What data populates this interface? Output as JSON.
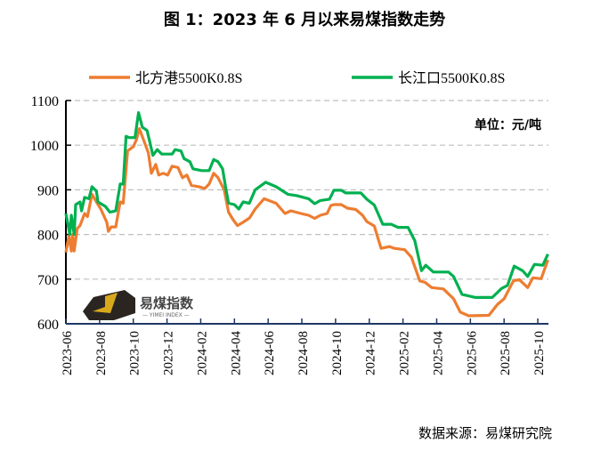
{
  "title": "图 1：2023 年 6 月以来易煤指数走势",
  "source": "数据来源：易煤研究院",
  "watermark": {
    "text": "易煤指数",
    "sub": "YIMEI INDEX"
  },
  "chart_data": {
    "type": "line",
    "title": "图 1：2023 年 6 月以来易煤指数走势",
    "unit_label": "单位：元/吨",
    "x_unit": "months since 2023-06",
    "xlim": [
      0,
      28.8
    ],
    "ylim": [
      600,
      1100
    ],
    "yticks": [
      600,
      700,
      800,
      900,
      1000,
      1100
    ],
    "xtick_labels": [
      "2023-06",
      "2023-08",
      "2023-10",
      "2023-12",
      "2024-02",
      "2024-04",
      "2024-06",
      "2024-08",
      "2024-10",
      "2024-12",
      "2025-02",
      "2025-04",
      "2025-06",
      "2025-08",
      "2025-10"
    ],
    "grid": "horizontal dashed",
    "legend_position": "top",
    "series": [
      {
        "name": "北方港5500K0.8S",
        "color": "#ED7D31",
        "points": [
          [
            0,
            760
          ],
          [
            0.18,
            797
          ],
          [
            0.32,
            763
          ],
          [
            0.4,
            800
          ],
          [
            0.49,
            763
          ],
          [
            0.67,
            813
          ],
          [
            0.84,
            820
          ],
          [
            1.11,
            847
          ],
          [
            1.28,
            840
          ],
          [
            1.55,
            890
          ],
          [
            1.81,
            873
          ],
          [
            2.07,
            857
          ],
          [
            2.43,
            827
          ],
          [
            2.52,
            807
          ],
          [
            2.69,
            817
          ],
          [
            2.96,
            817
          ],
          [
            3.22,
            873
          ],
          [
            3.4,
            870
          ],
          [
            3.66,
            987
          ],
          [
            4.01,
            997
          ],
          [
            4.19,
            1013
          ],
          [
            4.36,
            1037
          ],
          [
            4.63,
            1010
          ],
          [
            4.89,
            983
          ],
          [
            5.07,
            937
          ],
          [
            5.33,
            957
          ],
          [
            5.51,
            933
          ],
          [
            5.77,
            937
          ],
          [
            6.04,
            933
          ],
          [
            6.3,
            953
          ],
          [
            6.65,
            950
          ],
          [
            6.92,
            927
          ],
          [
            7.18,
            933
          ],
          [
            7.45,
            910
          ],
          [
            7.89,
            907
          ],
          [
            8.24,
            903
          ],
          [
            8.5,
            913
          ],
          [
            8.77,
            937
          ],
          [
            9.03,
            927
          ],
          [
            9.39,
            900
          ],
          [
            9.65,
            850
          ],
          [
            9.92,
            833
          ],
          [
            10.18,
            820
          ],
          [
            10.5,
            827
          ],
          [
            10.9,
            837
          ],
          [
            11.23,
            857
          ],
          [
            11.76,
            880
          ],
          [
            12.47,
            870
          ],
          [
            13.0,
            847
          ],
          [
            13.35,
            853
          ],
          [
            14.05,
            846
          ],
          [
            14.4,
            843
          ],
          [
            14.76,
            836
          ],
          [
            15.1,
            843
          ],
          [
            15.5,
            847
          ],
          [
            15.72,
            865
          ],
          [
            15.9,
            867
          ],
          [
            16.34,
            867
          ],
          [
            16.7,
            859
          ],
          [
            17.2,
            856
          ],
          [
            17.6,
            843
          ],
          [
            17.85,
            829
          ],
          [
            18.3,
            819
          ],
          [
            18.7,
            769
          ],
          [
            19.2,
            773
          ],
          [
            19.5,
            769
          ],
          [
            20.1,
            766
          ],
          [
            20.5,
            749
          ],
          [
            21.0,
            696
          ],
          [
            21.3,
            693
          ],
          [
            21.7,
            681
          ],
          [
            22.4,
            678
          ],
          [
            23.0,
            656
          ],
          [
            23.4,
            626
          ],
          [
            23.9,
            618
          ],
          [
            25.1,
            619
          ],
          [
            25.6,
            643
          ],
          [
            26.0,
            656
          ],
          [
            26.55,
            696
          ],
          [
            26.9,
            699
          ],
          [
            27.4,
            681
          ],
          [
            27.7,
            703
          ],
          [
            28.2,
            701
          ],
          [
            28.6,
            743
          ]
        ]
      },
      {
        "name": "长江口5500K0.8S",
        "color": "#00B050",
        "points": [
          [
            0,
            847
          ],
          [
            0.23,
            800
          ],
          [
            0.32,
            843
          ],
          [
            0.49,
            800
          ],
          [
            0.58,
            867
          ],
          [
            0.84,
            873
          ],
          [
            0.93,
            853
          ],
          [
            1.11,
            883
          ],
          [
            1.37,
            880
          ],
          [
            1.55,
            907
          ],
          [
            1.81,
            897
          ],
          [
            1.9,
            873
          ],
          [
            2.34,
            863
          ],
          [
            2.61,
            850
          ],
          [
            2.96,
            853
          ],
          [
            3.22,
            913
          ],
          [
            3.4,
            913
          ],
          [
            3.57,
            1020
          ],
          [
            3.75,
            1017
          ],
          [
            4.1,
            1017
          ],
          [
            4.31,
            1073
          ],
          [
            4.54,
            1040
          ],
          [
            4.81,
            1033
          ],
          [
            4.98,
            1007
          ],
          [
            5.16,
            977
          ],
          [
            5.42,
            990
          ],
          [
            5.69,
            980
          ],
          [
            6.3,
            980
          ],
          [
            6.48,
            990
          ],
          [
            6.83,
            987
          ],
          [
            7.01,
            970
          ],
          [
            7.36,
            963
          ],
          [
            7.54,
            947
          ],
          [
            8.06,
            943
          ],
          [
            8.5,
            943
          ],
          [
            8.77,
            968
          ],
          [
            9.03,
            963
          ],
          [
            9.3,
            947
          ],
          [
            9.47,
            907
          ],
          [
            9.65,
            870
          ],
          [
            10.0,
            867
          ],
          [
            10.26,
            857
          ],
          [
            10.52,
            873
          ],
          [
            10.88,
            870
          ],
          [
            11.23,
            900
          ],
          [
            11.85,
            917
          ],
          [
            12.47,
            907
          ],
          [
            13.17,
            890
          ],
          [
            13.7,
            887
          ],
          [
            14.4,
            880
          ],
          [
            14.76,
            869
          ],
          [
            15.1,
            876
          ],
          [
            15.64,
            879
          ],
          [
            15.9,
            899
          ],
          [
            16.34,
            899
          ],
          [
            16.6,
            893
          ],
          [
            17.5,
            893
          ],
          [
            17.85,
            879
          ],
          [
            18.3,
            866
          ],
          [
            18.8,
            823
          ],
          [
            19.3,
            823
          ],
          [
            19.7,
            816
          ],
          [
            20.3,
            816
          ],
          [
            20.7,
            786
          ],
          [
            21.1,
            719
          ],
          [
            21.35,
            731
          ],
          [
            21.8,
            716
          ],
          [
            22.7,
            716
          ],
          [
            23.0,
            706
          ],
          [
            23.5,
            666
          ],
          [
            24.3,
            659
          ],
          [
            25.3,
            659
          ],
          [
            25.85,
            679
          ],
          [
            26.2,
            686
          ],
          [
            26.6,
            729
          ],
          [
            27.1,
            719
          ],
          [
            27.4,
            706
          ],
          [
            27.8,
            733
          ],
          [
            28.3,
            731
          ],
          [
            28.6,
            756
          ]
        ]
      }
    ]
  }
}
